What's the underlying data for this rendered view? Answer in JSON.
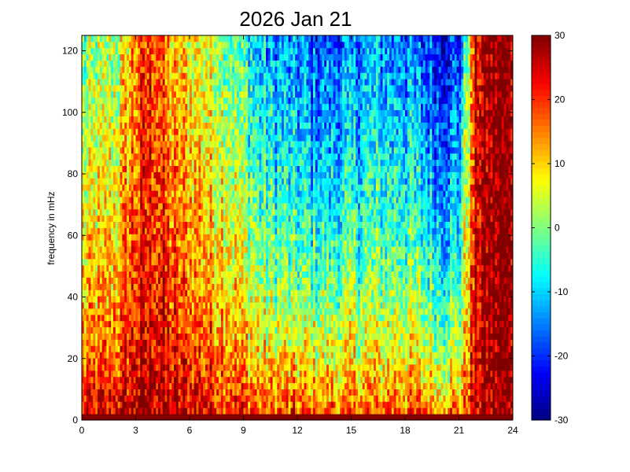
{
  "chart_data": {
    "type": "heatmap",
    "title": "2026 Jan 21",
    "xlabel": "",
    "ylabel": "frequency in mHz",
    "xlim": [
      0,
      24
    ],
    "ylim": [
      0,
      125
    ],
    "x_ticks": [
      0,
      3,
      6,
      9,
      12,
      15,
      18,
      21,
      24
    ],
    "y_ticks": [
      0,
      20,
      40,
      60,
      80,
      100,
      120
    ],
    "colorbar": {
      "colormap": "jet",
      "range": [
        -30,
        30
      ],
      "ticks": [
        30,
        20,
        10,
        0,
        -10,
        -20,
        -30
      ],
      "tick_labels": [
        "30",
        "20",
        "10",
        "0",
        "-10",
        "-20",
        "-30"
      ]
    },
    "grid": false,
    "columns_per_hour": 8,
    "rows": 62,
    "hour_profile": [
      {
        "hour": 0,
        "low_freq_level": 28,
        "high_freq_level": -2
      },
      {
        "hour": 2,
        "low_freq_level": 30,
        "high_freq_level": 3
      },
      {
        "hour": 3,
        "low_freq_level": 30,
        "high_freq_level": 15
      },
      {
        "hour": 4,
        "low_freq_level": 30,
        "high_freq_level": 20
      },
      {
        "hour": 5,
        "low_freq_level": 30,
        "high_freq_level": 10
      },
      {
        "hour": 6,
        "low_freq_level": 30,
        "high_freq_level": 8
      },
      {
        "hour": 8,
        "low_freq_level": 28,
        "high_freq_level": 2
      },
      {
        "hour": 10,
        "low_freq_level": 26,
        "high_freq_level": -12
      },
      {
        "hour": 12,
        "low_freq_level": 26,
        "high_freq_level": -16
      },
      {
        "hour": 14,
        "low_freq_level": 26,
        "high_freq_level": -18
      },
      {
        "hour": 16,
        "low_freq_level": 25,
        "high_freq_level": -14
      },
      {
        "hour": 18,
        "low_freq_level": 27,
        "high_freq_level": -14
      },
      {
        "hour": 20,
        "low_freq_level": 24,
        "high_freq_level": -22
      },
      {
        "hour": 21,
        "low_freq_level": 24,
        "high_freq_level": -20
      },
      {
        "hour": 22,
        "low_freq_level": 26,
        "high_freq_level": 25
      },
      {
        "hour": 23,
        "low_freq_level": 28,
        "high_freq_level": 30
      },
      {
        "hour": 24,
        "low_freq_level": 30,
        "high_freq_level": 30
      }
    ]
  }
}
